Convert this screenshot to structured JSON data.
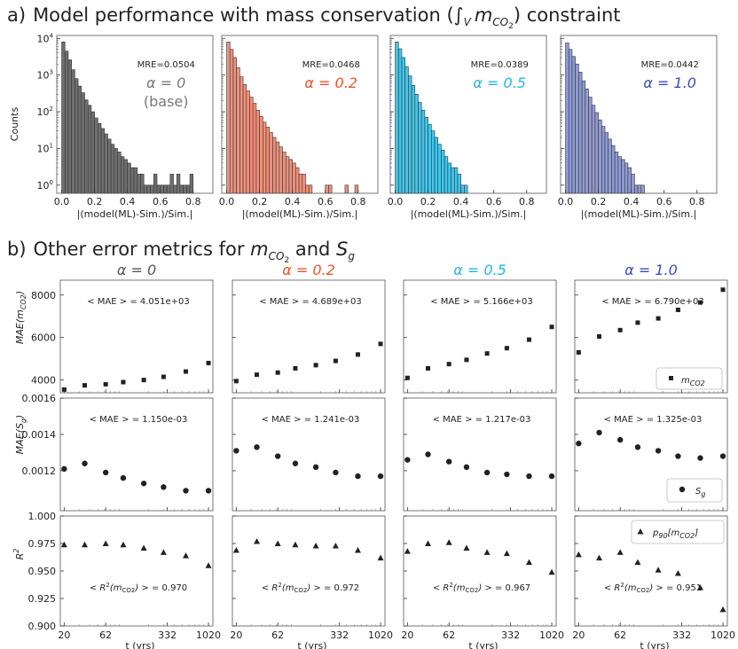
{
  "section_a": {
    "label": "a)",
    "title_pre": "Model performance with mass conservation (",
    "title_math": "∫",
    "title_sub_V": "V",
    "title_m": "m",
    "title_sub_co2": "CO",
    "title_sub_2": "2",
    "title_post": ") constraint",
    "ylabel": "Counts",
    "xlabel": "|(model(ML)-Sim.)/Sim.|"
  },
  "section_b": {
    "label": "b)",
    "title_pre": "Other error metrics for ",
    "title_mid": " and ",
    "xlabel": "t (yrs)",
    "ylabels": [
      "MAE(m_CO2)",
      "MAE(S_g)",
      "R^2"
    ],
    "legend_m": "m_CO2",
    "legend_sg": "S_g",
    "legend_p90": "p90[m_CO2]"
  },
  "alpha_labels": [
    "α = 0",
    "α = 0.2",
    "α = 0.5",
    "α = 1.0"
  ],
  "colors": {
    "hist_fill": [
      "#6f6f6f",
      "#f0907a",
      "#3fc6ec",
      "#8f9bd2"
    ],
    "text_accent": [
      "#333333",
      "#f0522a",
      "#1fb7ea",
      "#3b4cc0"
    ],
    "head": [
      "#555555",
      "#f0522a",
      "#1fb7ea",
      "#3b4cc0"
    ]
  },
  "chart_data": [
    {
      "type": "bar",
      "panel": "a1",
      "scale": "log",
      "mre_text": "MRE=0.0504",
      "alpha_text": "α = 0",
      "extra_text": "(base)",
      "bin_width": 0.02,
      "xlim": [
        -0.03,
        0.92
      ],
      "ylim": [
        0.6,
        12000
      ],
      "xticks": [
        0.0,
        0.2,
        0.4,
        0.6,
        0.8
      ],
      "xtick_labels": [
        "0.0",
        "0.2",
        "0.4",
        "0.6",
        "0.8"
      ],
      "yticks": [
        1,
        10,
        100,
        1000,
        10000
      ],
      "ytick_labels": [
        "10⁰",
        "10¹",
        "10²",
        "10³",
        "10⁴"
      ],
      "counts": [
        8000,
        4500,
        2600,
        1400,
        800,
        500,
        330,
        210,
        150,
        100,
        68,
        48,
        35,
        25,
        18,
        13,
        10,
        8,
        6,
        5,
        4,
        3,
        3,
        2,
        2,
        1,
        1,
        1,
        2,
        1,
        1,
        1,
        1,
        2,
        1,
        2,
        1,
        1,
        1,
        2
      ]
    },
    {
      "type": "bar",
      "panel": "a2",
      "scale": "log",
      "mre_text": "MRE=0.0468",
      "alpha_text": "α = 0.2",
      "bin_width": 0.02,
      "xlim": [
        -0.03,
        0.92
      ],
      "ylim": [
        0.6,
        12000
      ],
      "xticks": [
        0.0,
        0.2,
        0.4,
        0.6,
        0.8
      ],
      "xtick_labels": [
        "0.0",
        "0.2",
        "0.4",
        "0.6",
        "0.8"
      ],
      "yticks": [
        1,
        10,
        100,
        1000,
        10000
      ],
      "counts": [
        8000,
        5000,
        3000,
        1600,
        900,
        550,
        370,
        250,
        170,
        110,
        75,
        52,
        38,
        27,
        20,
        15,
        11,
        8,
        6,
        5,
        4,
        3,
        2,
        2,
        1,
        1,
        0,
        0,
        0,
        0,
        1,
        1,
        0,
        0,
        0,
        0,
        1,
        0,
        0,
        1
      ]
    },
    {
      "type": "bar",
      "panel": "a3",
      "scale": "log",
      "mre_text": "MRE=0.0389",
      "alpha_text": "α = 0.5",
      "bin_width": 0.02,
      "xlim": [
        -0.03,
        0.92
      ],
      "ylim": [
        0.6,
        12000
      ],
      "xticks": [
        0.0,
        0.2,
        0.4,
        0.6,
        0.8
      ],
      "xtick_labels": [
        "0.0",
        "0.2",
        "0.4",
        "0.6",
        "0.8"
      ],
      "yticks": [
        1,
        10,
        100,
        1000,
        10000
      ],
      "counts": [
        8000,
        5200,
        3000,
        1700,
        950,
        520,
        300,
        180,
        110,
        70,
        45,
        30,
        20,
        13,
        9,
        6,
        4,
        3,
        3,
        2,
        1,
        1
      ]
    },
    {
      "type": "bar",
      "panel": "a4",
      "scale": "log",
      "mre_text": "MRE=0.0442",
      "alpha_text": "α = 1.0",
      "bin_width": 0.02,
      "xlim": [
        -0.03,
        0.92
      ],
      "ylim": [
        0.6,
        12000
      ],
      "xticks": [
        0.0,
        0.2,
        0.4,
        0.6,
        0.8
      ],
      "xtick_labels": [
        "0.0",
        "0.2",
        "0.4",
        "0.6",
        "0.8"
      ],
      "yticks": [
        1,
        10,
        100,
        1000,
        10000
      ],
      "counts": [
        7500,
        5000,
        3200,
        2000,
        1200,
        700,
        420,
        250,
        150,
        95,
        60,
        40,
        27,
        18,
        12,
        8,
        6,
        5,
        4,
        3,
        2,
        1,
        1,
        1
      ]
    },
    {
      "type": "scatter",
      "row": "mae_m",
      "xscale": "log",
      "xlim": [
        18,
        1150
      ],
      "xticks": [
        20,
        62,
        332,
        1020
      ],
      "xtick_labels": [
        "20",
        "62",
        "332",
        "1020"
      ],
      "ylim": [
        3400,
        8700
      ],
      "yticks": [
        4000,
        6000,
        8000
      ],
      "ytick_labels": [
        "4000",
        "6000",
        "8000"
      ],
      "x": [
        20,
        35,
        62,
        100,
        175,
        300,
        550,
        1020
      ],
      "series": [
        {
          "panel": "b1",
          "annot": "< MAE > = 4.051e+03",
          "values": [
            3550,
            3750,
            3800,
            3900,
            4000,
            4150,
            4400,
            4800
          ]
        },
        {
          "panel": "b2",
          "annot": "< MAE > = 4.689e+03",
          "values": [
            3950,
            4250,
            4350,
            4550,
            4700,
            4900,
            5200,
            5700
          ]
        },
        {
          "panel": "b3",
          "annot": "< MAE > = 5.166e+03",
          "values": [
            4100,
            4550,
            4750,
            4950,
            5250,
            5500,
            5900,
            6500
          ]
        },
        {
          "panel": "b4",
          "annot": "< MAE > = 6.790e+03",
          "values": [
            5300,
            6050,
            6350,
            6700,
            6900,
            7300,
            7650,
            8250
          ]
        }
      ]
    },
    {
      "type": "scatter",
      "row": "mae_sg",
      "xscale": "log",
      "xlim": [
        18,
        1150
      ],
      "xticks": [
        20,
        62,
        332,
        1020
      ],
      "xtick_labels": [
        "20",
        "62",
        "332",
        "1020"
      ],
      "ylim": [
        0.00098,
        0.0016
      ],
      "yticks": [
        0.0012,
        0.0014,
        0.0016
      ],
      "ytick_labels": [
        "0.0012",
        "0.0014",
        "0.0016"
      ],
      "x": [
        20,
        35,
        62,
        100,
        175,
        300,
        550,
        1020
      ],
      "series": [
        {
          "panel": "b5",
          "annot": "< MAE > = 1.150e-03",
          "values": [
            0.00121,
            0.00124,
            0.00119,
            0.00116,
            0.00113,
            0.00111,
            0.00109,
            0.00109
          ]
        },
        {
          "panel": "b6",
          "annot": "< MAE > = 1.241e-03",
          "values": [
            0.00131,
            0.00133,
            0.00128,
            0.00124,
            0.00122,
            0.00119,
            0.00117,
            0.00117
          ]
        },
        {
          "panel": "b7",
          "annot": "< MAE > = 1.217e-03",
          "values": [
            0.00126,
            0.00129,
            0.00125,
            0.00122,
            0.00119,
            0.00118,
            0.00117,
            0.00117
          ]
        },
        {
          "panel": "b8",
          "annot": "< MAE > = 1.325e-03",
          "values": [
            0.00135,
            0.00141,
            0.00137,
            0.00133,
            0.00131,
            0.00128,
            0.00127,
            0.00128
          ]
        }
      ]
    },
    {
      "type": "scatter",
      "row": "r2",
      "xscale": "log",
      "xlim": [
        18,
        1150
      ],
      "xticks": [
        20,
        62,
        332,
        1020
      ],
      "xtick_labels": [
        "20",
        "62",
        "332",
        "1020"
      ],
      "ylim": [
        0.9,
        1.0
      ],
      "yticks": [
        0.9,
        0.925,
        0.95,
        0.975,
        1.0
      ],
      "ytick_labels": [
        "0.900",
        "0.925",
        "0.950",
        "0.975",
        "1.000"
      ],
      "x": [
        20,
        35,
        62,
        100,
        175,
        300,
        550,
        1020
      ],
      "series": [
        {
          "panel": "b9",
          "annot": "> = 0.970",
          "values": [
            0.974,
            0.974,
            0.975,
            0.974,
            0.971,
            0.967,
            0.964,
            0.955
          ]
        },
        {
          "panel": "b10",
          "annot": "> = 0.972",
          "values": [
            0.969,
            0.977,
            0.975,
            0.974,
            0.973,
            0.973,
            0.969,
            0.962
          ]
        },
        {
          "panel": "b11",
          "annot": "> = 0.967",
          "values": [
            0.968,
            0.975,
            0.976,
            0.971,
            0.967,
            0.966,
            0.958,
            0.949
          ]
        },
        {
          "panel": "b12",
          "annot": "> = 0.951",
          "values": [
            0.965,
            0.962,
            0.967,
            0.958,
            0.951,
            0.948,
            0.935,
            0.915
          ]
        }
      ]
    }
  ]
}
